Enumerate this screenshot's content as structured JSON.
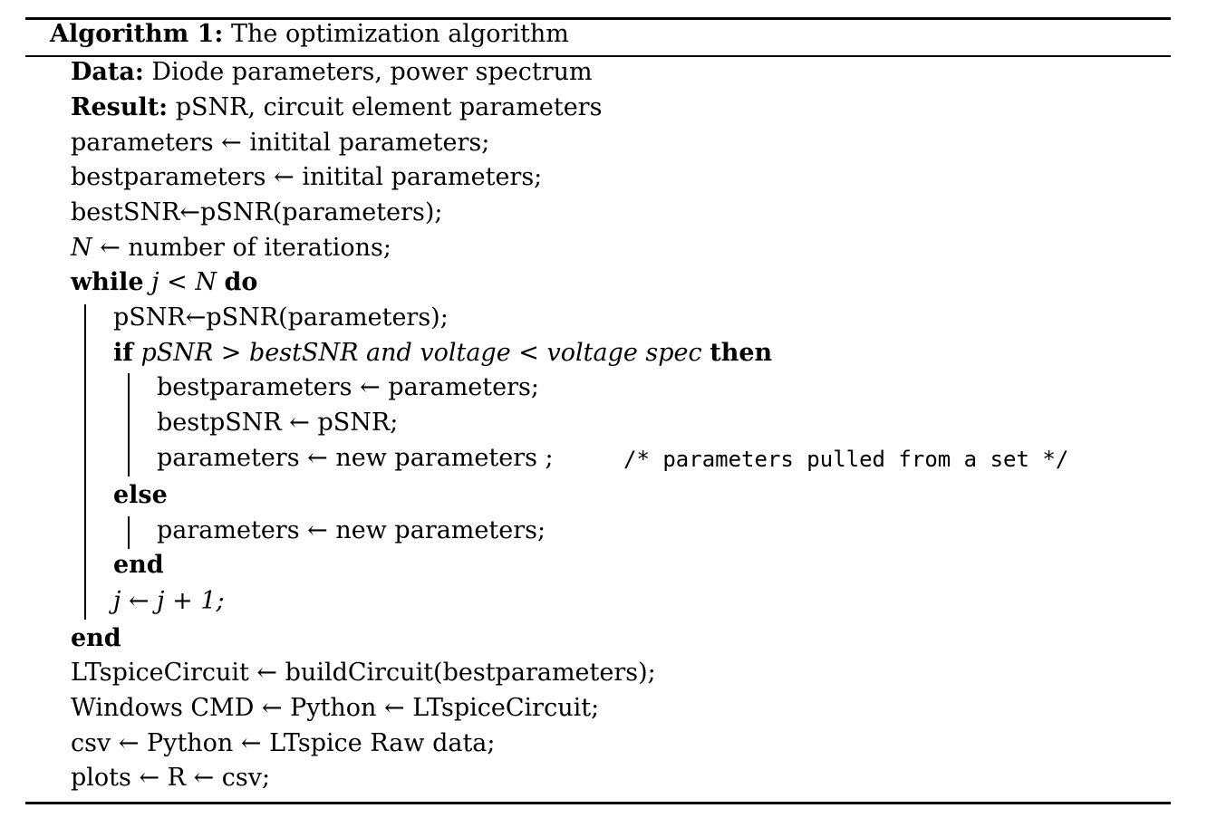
{
  "caption": {
    "label": "Algorithm 1:",
    "title": " The optimization algorithm"
  },
  "io": {
    "data_kw": "Data:",
    "data_text": " Diode parameters, power spectrum",
    "result_kw": "Result:",
    "result_text": " pSNR, circuit element parameters"
  },
  "init": [
    "parameters ← initital parameters;",
    "bestparameters ← initital parameters;",
    "bestSNR←pSNR(parameters);"
  ],
  "iter_def": {
    "var": "N",
    "text": " ← number of iterations;"
  },
  "while_stmt": {
    "kw_while": "while",
    "cond": " j < N ",
    "kw_do": "do"
  },
  "loop_first": "pSNR←pSNR(parameters);",
  "if_stmt": {
    "kw_if": "if",
    "cond": " pSNR > bestSNR and voltage < voltage spec ",
    "kw_then": "then"
  },
  "then_body": [
    "bestparameters ← parameters;",
    "bestpSNR ← pSNR;",
    "parameters ← new parameters ;"
  ],
  "comment": "/* parameters pulled from a set */",
  "kw_else": "else",
  "else_body": "parameters ← new parameters;",
  "kw_end_if": "end",
  "increment": "j ← j + 1;",
  "kw_end_while": "end",
  "tail": [
    "LTspiceCircuit ← buildCircuit(bestparameters);",
    "Windows CMD ← Python ← LTspiceCircuit;",
    "csv ← Python ← LTspice Raw data;",
    "plots ← R ← csv;"
  ]
}
